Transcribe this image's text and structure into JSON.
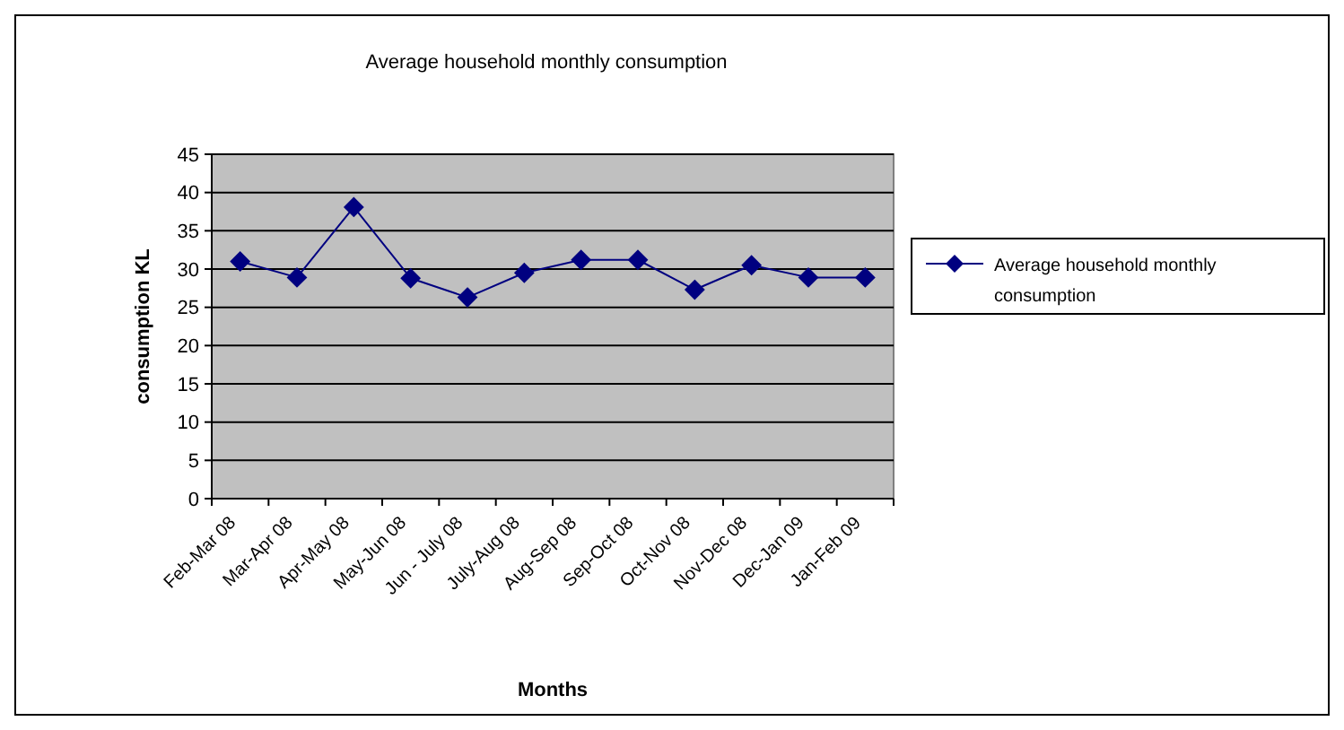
{
  "chart_data": {
    "type": "line",
    "title": "Average household monthly consumption",
    "xlabel": "Months",
    "ylabel": "consumption KL",
    "categories": [
      "Feb-Mar 08",
      "Mar-Apr 08",
      "Apr-May 08",
      "May-Jun 08",
      "Jun - July 08",
      "July-Aug 08",
      "Aug-Sep 08",
      "Sep-Oct 08",
      "Oct-Nov 08",
      "Nov-Dec 08",
      "Dec-Jan 09",
      "Jan-Feb 09"
    ],
    "series": [
      {
        "name": "Average household monthly consumption",
        "color": "#000080",
        "values": [
          31,
          28.9,
          38.1,
          28.8,
          26.3,
          29.5,
          31.2,
          31.2,
          27.3,
          30.5,
          28.9,
          28.9
        ]
      }
    ],
    "ylim": [
      0,
      45
    ],
    "yticks": [
      0,
      5,
      10,
      15,
      20,
      25,
      30,
      35,
      40,
      45
    ],
    "grid": "y",
    "legend": "right",
    "marker": "diamond",
    "line_style": "solid"
  }
}
